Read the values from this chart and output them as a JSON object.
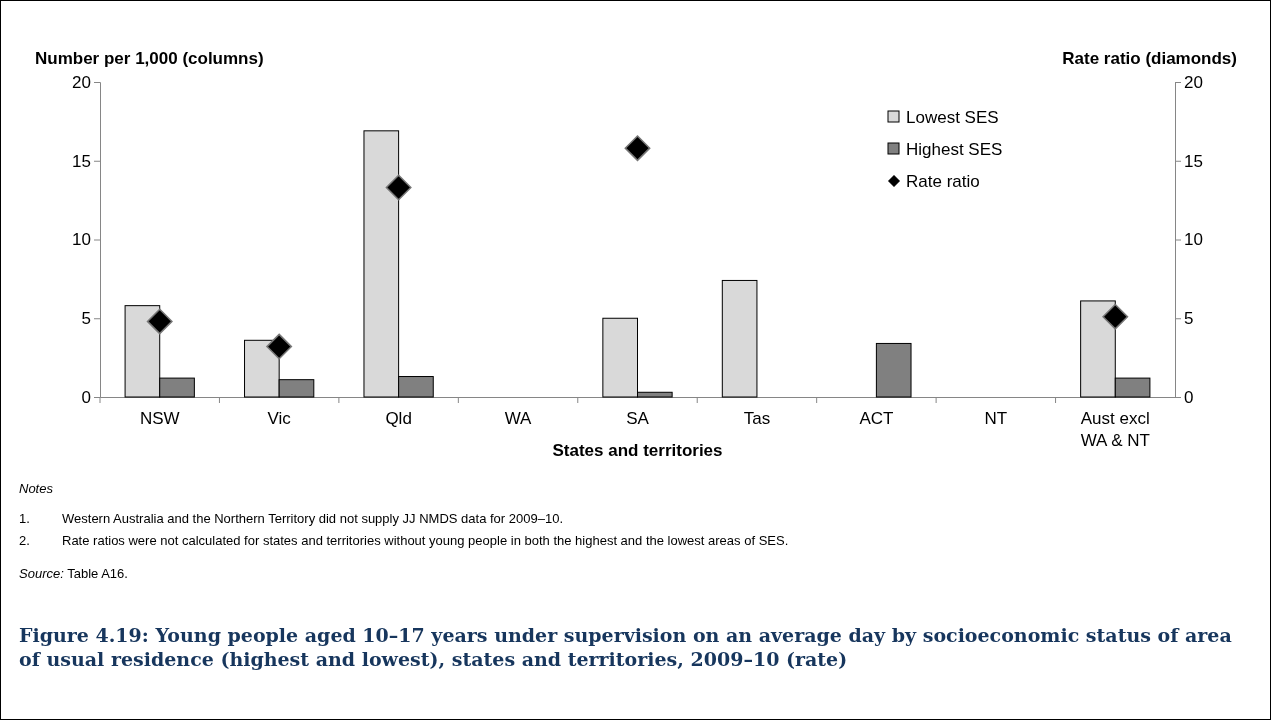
{
  "chart_data": {
    "type": "bar",
    "title": "Figure 4.19: Young people aged 10–17 years under supervision on an average day by socioeconomic status of area of usual residence (highest and lowest), states and territories, 2009–10 (rate)",
    "xlabel": "States and territories",
    "ylabel": "Number per 1,000 (columns)",
    "y2label": "Rate ratio (diamonds)",
    "categories": [
      "NSW",
      "Vic",
      "Qld",
      "WA",
      "SA",
      "Tas",
      "ACT",
      "NT",
      "Aust excl WA & NT"
    ],
    "series": [
      {
        "name": "Lowest SES",
        "color": "#d9d9d9",
        "values": [
          5.8,
          3.6,
          16.9,
          null,
          5.0,
          7.4,
          null,
          null,
          6.1
        ]
      },
      {
        "name": "Highest SES",
        "color": "#808080",
        "values": [
          1.2,
          1.1,
          1.3,
          null,
          0.3,
          null,
          3.4,
          null,
          1.2
        ]
      },
      {
        "name": "Rate ratio",
        "type": "scatter",
        "axis": "y2",
        "marker": "diamond",
        "color": "#000000",
        "values": [
          4.8,
          3.2,
          13.3,
          null,
          15.8,
          null,
          null,
          null,
          5.1
        ]
      }
    ],
    "ylim": [
      0,
      20
    ],
    "yticks": [
      0,
      5,
      10,
      15,
      20
    ],
    "y2lim": [
      0,
      20
    ],
    "y2ticks": [
      0,
      5,
      10,
      15,
      20
    ],
    "grid": false,
    "legend": "top right",
    "annotations": [
      "Notes",
      "1. Western Australia and the Northern Territory did not supply JJ NMDS data for 2009–10.",
      "2. Rate ratios were not calculated for states and territories without young people in both the highest and the lowest areas of SES.",
      "Source: Table A16."
    ]
  }
}
